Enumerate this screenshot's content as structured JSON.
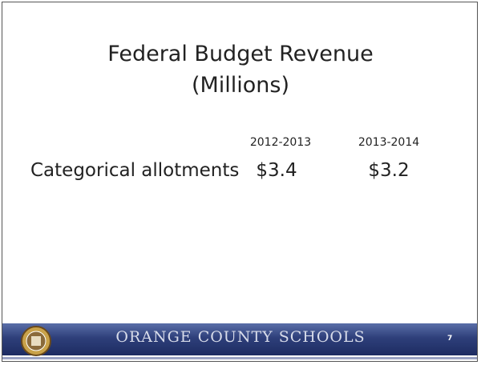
{
  "slide": {
    "title": "Federal Budget Revenue",
    "subtitle": "(Millions)",
    "table": {
      "columns": [
        "2012-2013",
        "2013-2014"
      ],
      "rows": [
        {
          "label": "Categorical allotments",
          "cells": [
            "$3.4",
            "$3.2"
          ]
        }
      ]
    },
    "footer": {
      "organization": "ORANGE COUNTY SCHOOLS",
      "page_number": "7"
    }
  }
}
